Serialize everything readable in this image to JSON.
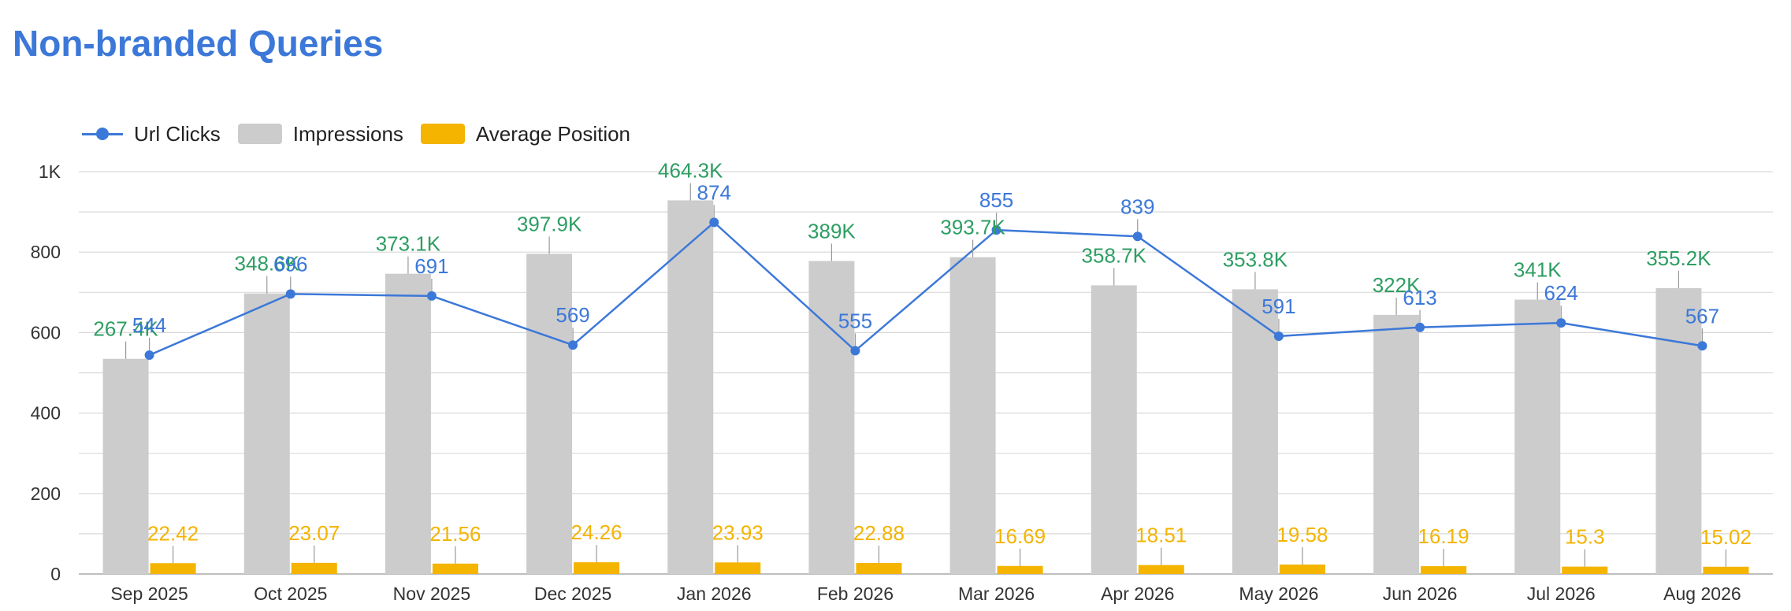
{
  "title": "Non-branded Queries",
  "colors": {
    "clicks": "#3c78d8",
    "impressions": "#cccccc",
    "position": "#f4b400",
    "impressions_label": "#2e9e63",
    "grid": "#d9d9d9",
    "axis_text": "#333333"
  },
  "legend": {
    "clicks": "Url Clicks",
    "impressions": "Impressions",
    "position": "Average Position"
  },
  "chart_data": {
    "type": "bar",
    "categories": [
      "Sep 2025",
      "Oct 2025",
      "Nov 2025",
      "Dec 2025",
      "Jan 2026",
      "Feb 2026",
      "Mar 2026",
      "Apr 2026",
      "May 2026",
      "Jun 2026",
      "Jul 2026",
      "Aug 2026"
    ],
    "ylim": [
      0,
      1000
    ],
    "yticks": [
      0,
      200,
      400,
      600,
      800,
      1000
    ],
    "ytick_labels": [
      "0",
      "200",
      "400",
      "600",
      "800",
      "1K"
    ],
    "grid": true,
    "legend_position": "top-left",
    "series": [
      {
        "name": "Url Clicks",
        "type": "line",
        "values": [
          544,
          696,
          691,
          569,
          874,
          555,
          855,
          839,
          591,
          613,
          624,
          567
        ],
        "labels": [
          "544",
          "696",
          "691",
          "569",
          "874",
          "555",
          "855",
          "839",
          "591",
          "613",
          "624",
          "567"
        ]
      },
      {
        "name": "Impressions",
        "type": "bar",
        "values": [
          267400,
          348600,
          373100,
          397900,
          464300,
          389000,
          393700,
          358700,
          353800,
          322000,
          341000,
          355200
        ],
        "labels": [
          "267.4K",
          "348.6K",
          "373.1K",
          "397.9K",
          "464.3K",
          "389K",
          "393.7K",
          "358.7K",
          "353.8K",
          "322K",
          "341K",
          "355.2K"
        ]
      },
      {
        "name": "Average Position",
        "type": "bar",
        "values": [
          22.42,
          23.07,
          21.56,
          24.26,
          23.93,
          22.88,
          16.69,
          18.51,
          19.58,
          16.19,
          15.3,
          15.02
        ],
        "labels": [
          "22.42",
          "23.07",
          "21.56",
          "24.26",
          "23.93",
          "22.88",
          "16.69",
          "18.51",
          "19.58",
          "16.19",
          "15.3",
          "15.02"
        ]
      }
    ]
  }
}
